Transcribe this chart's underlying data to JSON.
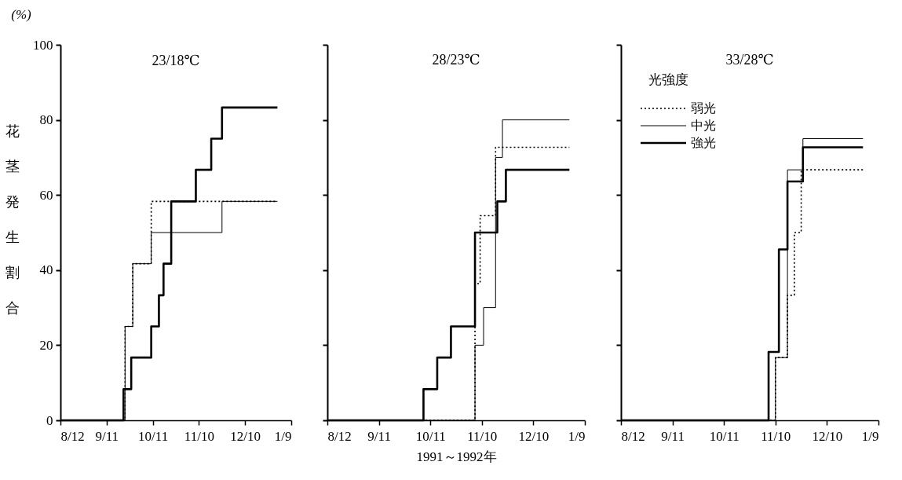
{
  "chart_data": [
    {
      "type": "step",
      "title": "23/18℃",
      "ylabel": "花茎発生割合",
      "annotations": [
        "(%)"
      ],
      "xlim": [
        "1991-08-12",
        "1992-01-09"
      ],
      "ylim": [
        0,
        100
      ],
      "xticks": [
        {
          "value": "1991-08-12",
          "label": "8/12"
        },
        {
          "value": "1991-09-11",
          "label": "9/11"
        },
        {
          "value": "1991-10-11",
          "label": "10/11"
        },
        {
          "value": "1991-11-10",
          "label": "11/10"
        },
        {
          "value": "1991-12-10",
          "label": "12/10"
        },
        {
          "value": "1992-01-09",
          "label": "1/9"
        }
      ],
      "yticks": [
        0,
        20,
        40,
        60,
        80,
        100
      ],
      "grid": false,
      "legend": false,
      "series": [
        {
          "color": "#000000",
          "line_style": "dotted",
          "x": [
            "1991-08-12",
            "1991-09-23",
            "1991-09-28",
            "1991-10-10",
            "1991-12-31"
          ],
          "values": [
            0,
            25,
            41.7,
            58.3,
            58.3
          ]
        },
        {
          "color": "#000000",
          "line_style": "solid",
          "x": [
            "1991-08-12",
            "1991-09-23",
            "1991-09-28",
            "1991-10-10",
            "1991-11-25",
            "1991-12-31"
          ],
          "values": [
            0,
            25,
            41.7,
            50,
            58.3,
            58.3
          ]
        },
        {
          "color": "#000000",
          "line_style": "solid",
          "x": [
            "1991-08-12",
            "1991-09-22",
            "1991-09-27",
            "1991-10-10",
            "1991-10-15",
            "1991-10-18",
            "1991-10-23",
            "1991-11-08",
            "1991-11-18",
            "1991-11-25",
            "1991-12-31"
          ],
          "values": [
            0,
            8.3,
            16.7,
            25,
            33.3,
            41.7,
            58.3,
            66.7,
            75,
            83.3,
            83.3
          ]
        }
      ]
    },
    {
      "type": "step",
      "title": "28/23℃",
      "xlabel": "1991～1992年",
      "tick_labels": "x",
      "xlim": [
        "1991-08-12",
        "1992-01-09"
      ],
      "ylim": [
        0,
        100
      ],
      "xticks": [
        {
          "value": "1991-08-12",
          "label": "8/12"
        },
        {
          "value": "1991-09-11",
          "label": "9/11"
        },
        {
          "value": "1991-10-11",
          "label": "10/11"
        },
        {
          "value": "1991-11-10",
          "label": "11/10"
        },
        {
          "value": "1991-12-10",
          "label": "12/10"
        },
        {
          "value": "1992-01-09",
          "label": "1/9"
        }
      ],
      "yticks": [
        0,
        20,
        40,
        60,
        80,
        100
      ],
      "grid": false,
      "legend": false,
      "series": [
        {
          "color": "#000000",
          "line_style": "dotted",
          "x": [
            "1991-08-12",
            "1991-11-06",
            "1991-11-09",
            "1991-11-18",
            "1991-12-31"
          ],
          "values": [
            0,
            36.4,
            54.5,
            72.7,
            72.7
          ]
        },
        {
          "color": "#000000",
          "line_style": "solid",
          "x": [
            "1991-08-12",
            "1991-11-06",
            "1991-11-11",
            "1991-11-18",
            "1991-11-22",
            "1991-12-31"
          ],
          "values": [
            0,
            20,
            30,
            70,
            80,
            80
          ]
        },
        {
          "color": "#000000",
          "line_style": "solid",
          "x": [
            "1991-08-12",
            "1991-10-07",
            "1991-10-15",
            "1991-10-23",
            "1991-11-06",
            "1991-11-19",
            "1991-11-24",
            "1991-12-31"
          ],
          "values": [
            0,
            8.3,
            16.7,
            25,
            50,
            58.3,
            66.7,
            66.7
          ]
        }
      ]
    },
    {
      "type": "step",
      "title": "33/28℃",
      "legend_title": "光強度",
      "tick_labels": "x",
      "xlim": [
        "1991-08-12",
        "1992-01-09"
      ],
      "ylim": [
        0,
        100
      ],
      "xticks": [
        {
          "value": "1991-08-12",
          "label": "8/12"
        },
        {
          "value": "1991-09-11",
          "label": "9/11"
        },
        {
          "value": "1991-10-11",
          "label": "10/11"
        },
        {
          "value": "1991-11-10",
          "label": "11/10"
        },
        {
          "value": "1991-12-10",
          "label": "12/10"
        },
        {
          "value": "1992-01-09",
          "label": "1/9"
        }
      ],
      "yticks": [
        0,
        20,
        40,
        60,
        80,
        100
      ],
      "grid": false,
      "legend": "top left",
      "series": [
        {
          "name": "弱光",
          "color": "#000000",
          "line_style": "dotted",
          "x": [
            "1991-08-12",
            "1991-11-10",
            "1991-11-17",
            "1991-11-21",
            "1991-11-25",
            "1991-12-31"
          ],
          "values": [
            0,
            16.7,
            33.3,
            50,
            66.7,
            66.7
          ]
        },
        {
          "name": "中光",
          "color": "#000000",
          "line_style": "solid",
          "x": [
            "1991-08-12",
            "1991-11-10",
            "1991-11-17",
            "1991-11-26",
            "1991-12-31"
          ],
          "values": [
            0,
            16.7,
            66.7,
            75,
            75
          ]
        },
        {
          "name": "強光",
          "color": "#000000",
          "line_style": "solid",
          "x": [
            "1991-08-12",
            "1991-11-06",
            "1991-11-12",
            "1991-11-17",
            "1991-11-26",
            "1991-12-31"
          ],
          "values": [
            0,
            18.2,
            45.5,
            63.6,
            72.7,
            72.7
          ]
        }
      ]
    }
  ]
}
